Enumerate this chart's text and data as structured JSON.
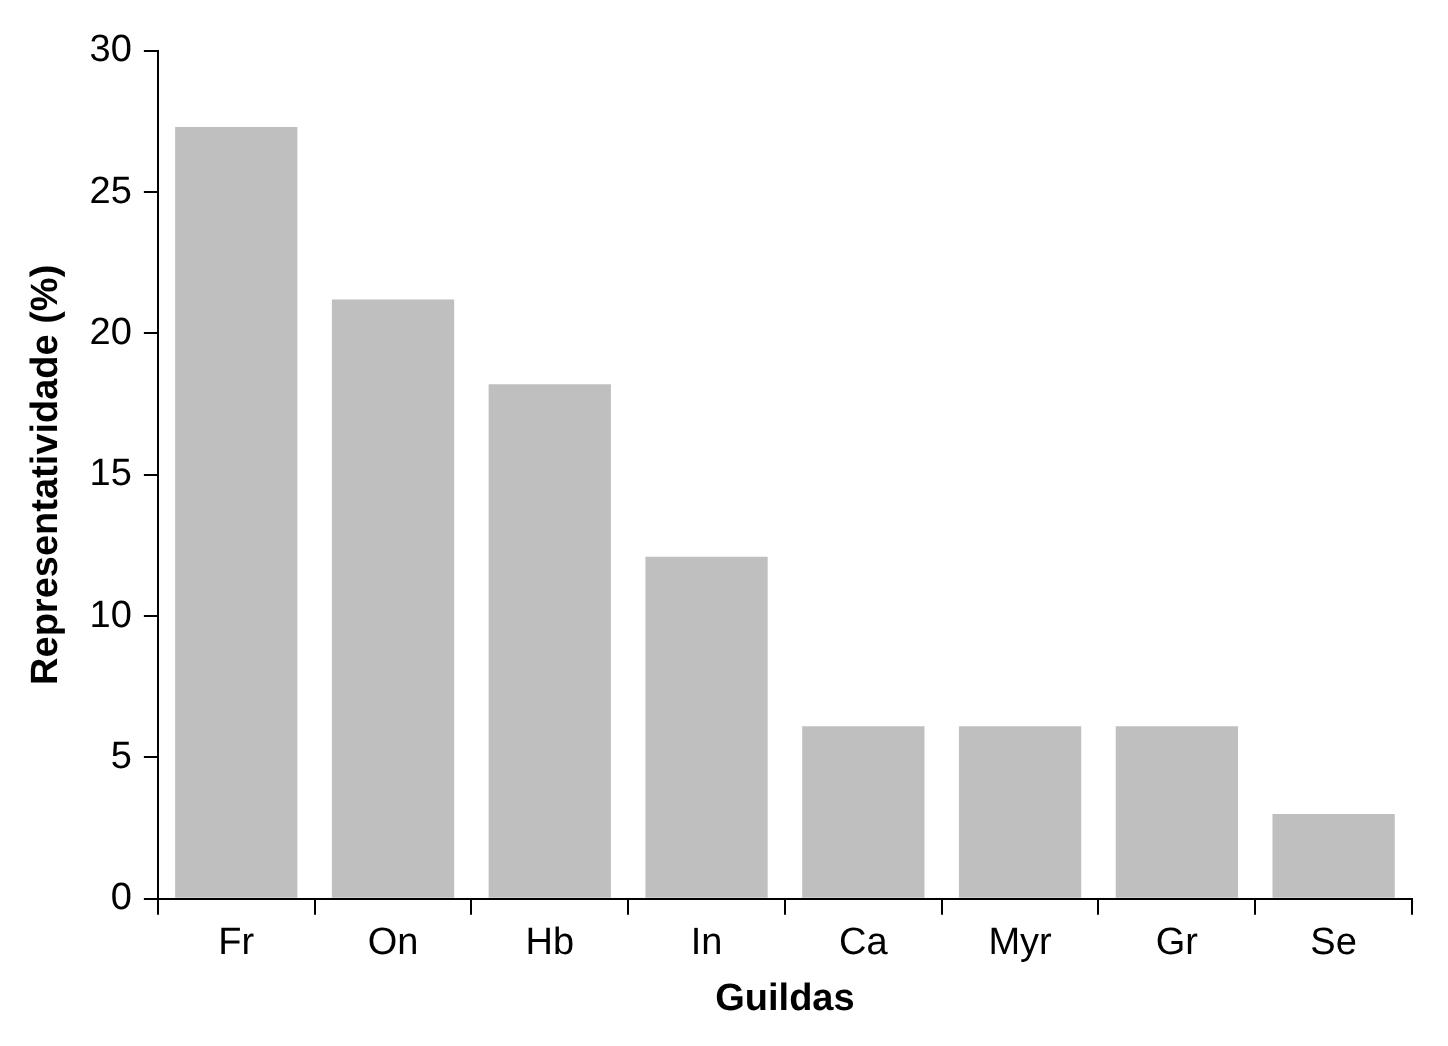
{
  "chart_data": {
    "type": "bar",
    "xlabel": "Guildas",
    "ylabel": "Representatividade (%)",
    "categories": [
      "Fr",
      "On",
      "Hb",
      "In",
      "Ca",
      "Myr",
      "Gr",
      "Se"
    ],
    "values": [
      27.3,
      21.2,
      18.2,
      12.1,
      6.1,
      6.1,
      6.1,
      3.0
    ],
    "color": "#bfbfbf",
    "ylim": [
      0,
      30
    ],
    "yticks": [
      0,
      5,
      10,
      15,
      20,
      25,
      30
    ],
    "grid": false,
    "legend": false
  }
}
